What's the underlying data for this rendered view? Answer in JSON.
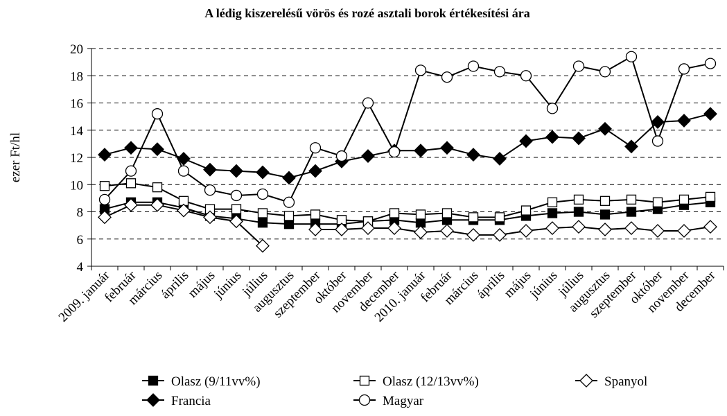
{
  "chart_data": {
    "type": "line",
    "title": "A lédig kiszerelésű vörös és rozé asztali borok értékesítési ára",
    "y_label": "ezer Ft/hl",
    "categories": [
      "2009. január",
      "február",
      "március",
      "április",
      "május",
      "június",
      "július",
      "augusztus",
      "szeptember",
      "október",
      "november",
      "december",
      "2010. január",
      "február",
      "március",
      "április",
      "május",
      "június",
      "július",
      "augusztus",
      "szeptember",
      "október",
      "november",
      "december"
    ],
    "series": [
      {
        "name": "Olasz (9/11vv%)",
        "color": "#000000",
        "marker": "square-filled",
        "values": [
          8.2,
          8.7,
          8.7,
          8.3,
          7.7,
          7.5,
          7.2,
          7.1,
          7.1,
          7.1,
          7.3,
          7.4,
          7.2,
          7.4,
          7.4,
          7.4,
          7.7,
          7.9,
          8.0,
          7.8,
          8.0,
          8.2,
          8.5,
          8.7
        ]
      },
      {
        "name": "Olasz (12/13vv%)",
        "color": "#000000",
        "marker": "square-open",
        "values": [
          9.9,
          10.1,
          9.8,
          8.8,
          8.2,
          8.2,
          7.9,
          7.7,
          7.8,
          7.4,
          7.3,
          7.9,
          7.8,
          7.9,
          7.6,
          7.6,
          8.1,
          8.7,
          8.9,
          8.8,
          8.9,
          8.7,
          8.9,
          9.1
        ]
      },
      {
        "name": "Spanyol",
        "color": "#000000",
        "marker": "diamond-open",
        "values": [
          7.6,
          8.5,
          8.5,
          8.1,
          7.6,
          7.3,
          5.5,
          null,
          6.7,
          6.7,
          6.8,
          6.8,
          6.5,
          6.6,
          6.3,
          6.3,
          6.6,
          6.8,
          6.9,
          6.7,
          6.8,
          6.6,
          6.6,
          6.9
        ]
      },
      {
        "name": "Francia",
        "color": "#000000",
        "marker": "diamond-filled",
        "values": [
          12.2,
          12.7,
          12.6,
          11.9,
          11.1,
          11.0,
          10.9,
          10.5,
          11.0,
          11.7,
          12.1,
          12.5,
          12.5,
          12.7,
          12.2,
          11.9,
          13.2,
          13.5,
          13.4,
          14.1,
          12.8,
          14.6,
          14.7,
          15.2
        ]
      },
      {
        "name": "Magyar",
        "color": "#000000",
        "marker": "circle-open",
        "values": [
          8.9,
          11.0,
          15.2,
          11.0,
          9.6,
          9.2,
          9.3,
          8.7,
          12.7,
          12.1,
          16.0,
          12.4,
          18.4,
          17.9,
          18.7,
          18.3,
          18.0,
          15.6,
          18.7,
          18.3,
          19.4,
          13.2,
          18.5,
          18.9
        ]
      }
    ],
    "ylim": [
      4,
      20
    ],
    "yticks": [
      4,
      6,
      8,
      10,
      12,
      14,
      16,
      18,
      20
    ],
    "grid": true,
    "legend": "bottom"
  }
}
